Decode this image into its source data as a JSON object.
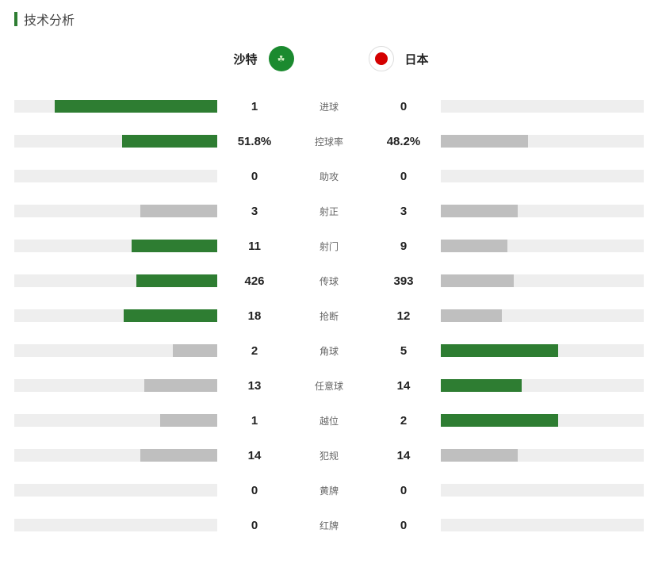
{
  "title": "技术分析",
  "colors": {
    "accent": "#2e7d32",
    "winnerBar": "#2e7d32",
    "loserBar": "#bfbfbf",
    "track": "#eeeeee",
    "text": "#222222",
    "labelText": "#666666",
    "background": "#ffffff"
  },
  "teams": {
    "left": {
      "name": "沙特",
      "flagBg": "#1b8a2f",
      "flagGlyph": "☘",
      "flagGlyphColor": "#d6f0c8"
    },
    "right": {
      "name": "日本",
      "flagBg": "#ffffff",
      "flagDot": "#d40000",
      "flagBorder": "#dddddd"
    }
  },
  "barMaxWidth": 256,
  "stats": [
    {
      "label": "进球",
      "leftValue": "1",
      "rightValue": "0",
      "leftPct": 80,
      "rightPct": 0,
      "winner": "left"
    },
    {
      "label": "控球率",
      "leftValue": "51.8%",
      "rightValue": "48.2%",
      "leftPct": 47,
      "rightPct": 43,
      "winner": "left"
    },
    {
      "label": "助攻",
      "leftValue": "0",
      "rightValue": "0",
      "leftPct": 0,
      "rightPct": 0,
      "winner": "none"
    },
    {
      "label": "射正",
      "leftValue": "3",
      "rightValue": "3",
      "leftPct": 38,
      "rightPct": 38,
      "winner": "none"
    },
    {
      "label": "射门",
      "leftValue": "11",
      "rightValue": "9",
      "leftPct": 42,
      "rightPct": 33,
      "winner": "left"
    },
    {
      "label": "传球",
      "leftValue": "426",
      "rightValue": "393",
      "leftPct": 40,
      "rightPct": 36,
      "winner": "left"
    },
    {
      "label": "抢断",
      "leftValue": "18",
      "rightValue": "12",
      "leftPct": 46,
      "rightPct": 30,
      "winner": "left"
    },
    {
      "label": "角球",
      "leftValue": "2",
      "rightValue": "5",
      "leftPct": 22,
      "rightPct": 58,
      "winner": "right"
    },
    {
      "label": "任意球",
      "leftValue": "13",
      "rightValue": "14",
      "leftPct": 36,
      "rightPct": 40,
      "winner": "right"
    },
    {
      "label": "越位",
      "leftValue": "1",
      "rightValue": "2",
      "leftPct": 28,
      "rightPct": 58,
      "winner": "right"
    },
    {
      "label": "犯规",
      "leftValue": "14",
      "rightValue": "14",
      "leftPct": 38,
      "rightPct": 38,
      "winner": "none"
    },
    {
      "label": "黄牌",
      "leftValue": "0",
      "rightValue": "0",
      "leftPct": 0,
      "rightPct": 0,
      "winner": "none"
    },
    {
      "label": "红牌",
      "leftValue": "0",
      "rightValue": "0",
      "leftPct": 0,
      "rightPct": 0,
      "winner": "none"
    }
  ]
}
